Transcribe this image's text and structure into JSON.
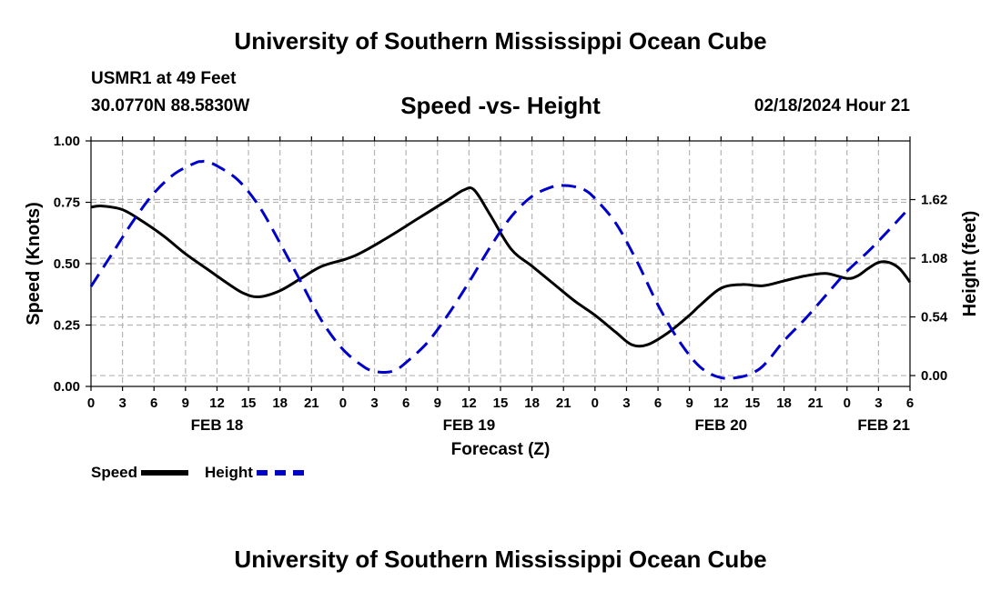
{
  "page": {
    "title": "University of Southern Mississippi Ocean Cube",
    "footer_title": "University of Southern Mississippi Ocean Cube",
    "station": "USMR1 at 49 Feet",
    "coordinates": "30.0770N  88.5830W",
    "subtitle": "Speed -vs- Height",
    "datestamp": "02/18/2024 Hour 21"
  },
  "chart_data": {
    "type": "line",
    "title": "Speed -vs- Height",
    "xlabel": "Forecast (Z)",
    "ylabel": "Speed (Knots)",
    "y2label": "Height (feet)",
    "xlim": [
      0,
      78
    ],
    "ylim": [
      0,
      1.0
    ],
    "y2lim": [
      -0.1,
      2.16
    ],
    "x_ticks": [
      0,
      3,
      6,
      9,
      12,
      15,
      18,
      21,
      24,
      27,
      30,
      33,
      36,
      39,
      42,
      45,
      48,
      51,
      54,
      57,
      60,
      63,
      66,
      69,
      72,
      75,
      78
    ],
    "x_tick_labels": [
      "0",
      "3",
      "6",
      "9",
      "12",
      "15",
      "18",
      "21",
      "0",
      "3",
      "6",
      "9",
      "12",
      "15",
      "18",
      "21",
      "0",
      "3",
      "6",
      "9",
      "12",
      "15",
      "18",
      "21",
      "0",
      "3",
      "6"
    ],
    "date_labels": [
      {
        "hour": 12,
        "label": "FEB 18"
      },
      {
        "hour": 36,
        "label": "FEB 19"
      },
      {
        "hour": 60,
        "label": "FEB 20"
      },
      {
        "hour": 75.5,
        "label": "FEB 21"
      }
    ],
    "y_ticks": [
      0.0,
      0.25,
      0.5,
      0.75,
      1.0
    ],
    "y_tick_labels": [
      "0.00",
      "0.25",
      "0.50",
      "0.75",
      "1.00"
    ],
    "y2_ticks": [
      0.0,
      0.54,
      1.08,
      1.62
    ],
    "y2_tick_labels": [
      "0.00",
      "0.54",
      "1.08",
      "1.62"
    ],
    "grid": true,
    "series": [
      {
        "name": "Speed",
        "axis": "left",
        "color": "#000000",
        "dash": "solid",
        "x": [
          0,
          1,
          3,
          5,
          7,
          9,
          11,
          13,
          14.5,
          16,
          18,
          20,
          22,
          25,
          28,
          31,
          34,
          35.5,
          36.5,
          38,
          40,
          42,
          44,
          46,
          48,
          50,
          51.5,
          53,
          55,
          57,
          58,
          60,
          62,
          64,
          66,
          68,
          70,
          72,
          73,
          74,
          75,
          76,
          77,
          78
        ],
        "y": [
          0.73,
          0.735,
          0.72,
          0.67,
          0.61,
          0.54,
          0.48,
          0.42,
          0.38,
          0.365,
          0.39,
          0.44,
          0.49,
          0.53,
          0.6,
          0.68,
          0.76,
          0.8,
          0.8,
          0.7,
          0.56,
          0.49,
          0.42,
          0.35,
          0.29,
          0.22,
          0.17,
          0.17,
          0.22,
          0.29,
          0.33,
          0.4,
          0.415,
          0.41,
          0.43,
          0.45,
          0.46,
          0.44,
          0.45,
          0.48,
          0.505,
          0.505,
          0.48,
          0.425
        ]
      },
      {
        "name": "Height",
        "axis": "right",
        "color": "#0000cc",
        "dash": "dashed",
        "x": [
          0,
          2,
          4,
          6,
          8,
          10,
          10.5,
          11,
          12,
          14,
          16,
          18,
          20,
          22,
          24,
          26,
          27,
          28,
          29,
          30,
          32,
          34,
          36,
          38,
          40,
          42,
          44,
          45,
          46,
          47,
          48,
          50,
          52,
          54,
          56,
          58,
          60,
          62,
          63.5,
          64.5,
          66,
          68,
          70,
          72,
          74,
          76,
          78
        ],
        "y": [
          0.82,
          1.12,
          1.42,
          1.68,
          1.86,
          1.96,
          1.97,
          1.97,
          1.93,
          1.8,
          1.56,
          1.22,
          0.86,
          0.5,
          0.24,
          0.08,
          0.04,
          0.03,
          0.05,
          0.12,
          0.3,
          0.56,
          0.86,
          1.18,
          1.46,
          1.65,
          1.74,
          1.75,
          1.74,
          1.71,
          1.63,
          1.4,
          1.05,
          0.65,
          0.32,
          0.08,
          -0.02,
          -0.01,
          0.05,
          0.14,
          0.32,
          0.52,
          0.74,
          0.96,
          1.14,
          1.34,
          1.55
        ]
      }
    ]
  },
  "legend": {
    "speed_label": "Speed",
    "height_label": "Height"
  },
  "colors": {
    "speed": "#000000",
    "height": "#0000cc",
    "grid": "#b4b4b4"
  }
}
